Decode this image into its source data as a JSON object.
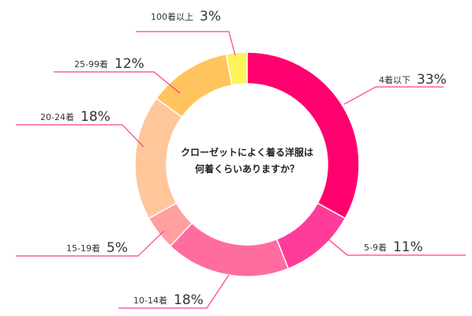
{
  "chart_data": {
    "type": "pie",
    "donut": true,
    "legend": "none",
    "title_lines": [
      "クローゼットによく着る洋服は",
      "何着くらいありますか？"
    ],
    "categories": [
      "4着以下",
      "5-9着",
      "10-14着",
      "15-19着",
      "20-24着",
      "25-99着",
      "100着以上"
    ],
    "values": [
      33,
      11,
      18,
      5,
      18,
      12,
      3
    ],
    "value_labels": [
      "33%",
      "11%",
      "18%",
      "5%",
      "18%",
      "12%",
      "3%"
    ],
    "colors": [
      "#ff006e",
      "#ff3c9a",
      "#ff6ca0",
      "#ff9f9f",
      "#ffc69a",
      "#ffc45e",
      "#fff35a"
    ],
    "leader_color": "#ff3d8a"
  }
}
